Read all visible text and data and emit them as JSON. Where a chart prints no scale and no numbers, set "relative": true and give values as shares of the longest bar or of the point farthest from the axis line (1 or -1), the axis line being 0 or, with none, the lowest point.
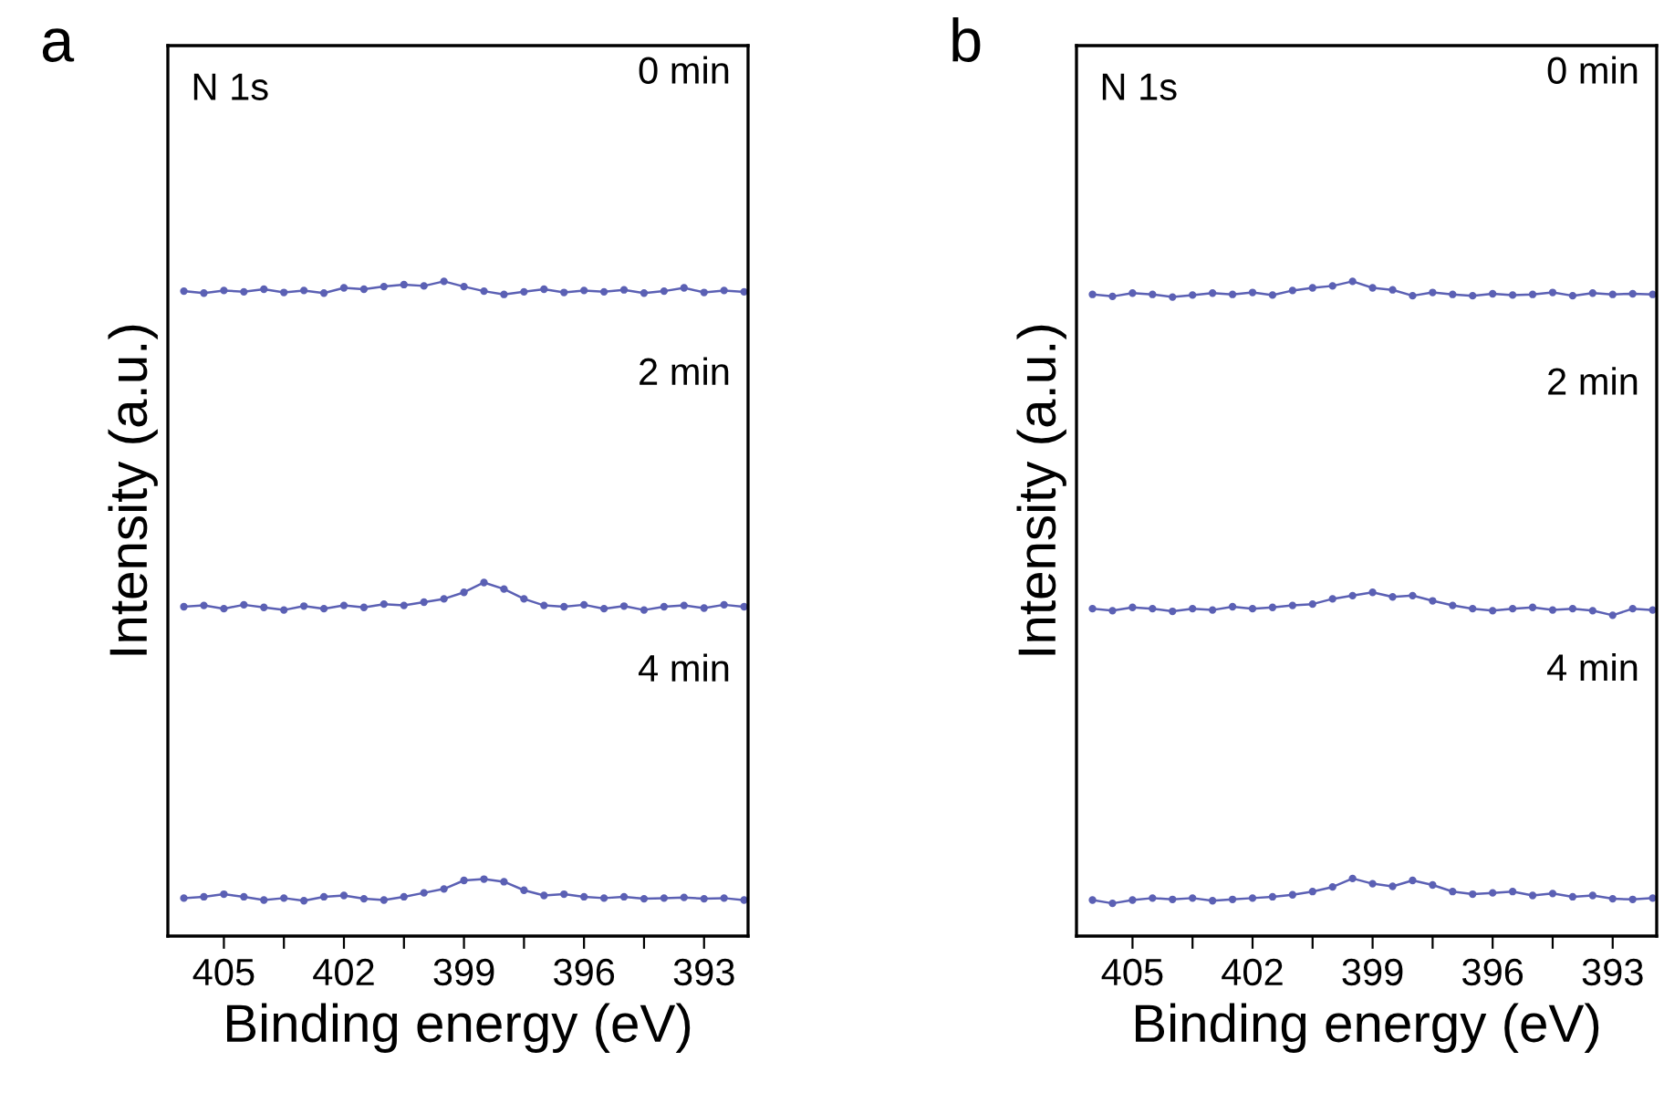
{
  "chart_data": [
    {
      "type": "line",
      "title": "a",
      "xlabel": "Binding energy (eV)",
      "ylabel": "Intensity (a.u.)",
      "relative": true,
      "tick_labels": "x",
      "grid": false,
      "marker": "circle",
      "line_style": "solid",
      "annotations": [
        "N 1s",
        "0 min",
        "2 min",
        "4 min"
      ],
      "xlim": [
        406.4,
        391.9
      ],
      "xticks": [
        405,
        {
          "value": 403.5,
          "label": null
        },
        402,
        {
          "value": 400.5,
          "label": null
        },
        399,
        {
          "value": 397.5,
          "label": null
        },
        396,
        {
          "value": 394.5,
          "label": null
        },
        393
      ],
      "x": [
        406.0,
        405.5,
        405.0,
        404.5,
        404.0,
        403.5,
        403.0,
        402.5,
        402.0,
        401.5,
        401.0,
        400.5,
        400.0,
        399.5,
        399.0,
        398.5,
        398.0,
        397.5,
        397.0,
        396.5,
        396.0,
        395.5,
        395.0,
        394.5,
        394.0,
        393.5,
        393.0,
        392.5,
        392.0
      ],
      "series": [
        {
          "color": "#5b60b4",
          "values": [
            0.985,
            0.982,
            0.986,
            0.984,
            0.988,
            0.983,
            0.986,
            0.982,
            0.99,
            0.988,
            0.992,
            0.995,
            0.993,
            1.0,
            0.992,
            0.985,
            0.98,
            0.984,
            0.988,
            0.983,
            0.986,
            0.984,
            0.987,
            0.982,
            0.985,
            0.99,
            0.983,
            0.986,
            0.984
          ]
        },
        {
          "color": "#5b60b4",
          "values": [
            0.503,
            0.505,
            0.5,
            0.506,
            0.502,
            0.498,
            0.504,
            0.5,
            0.505,
            0.502,
            0.507,
            0.505,
            0.51,
            0.515,
            0.525,
            0.54,
            0.53,
            0.515,
            0.505,
            0.503,
            0.506,
            0.5,
            0.504,
            0.498,
            0.503,
            0.505,
            0.501,
            0.506,
            0.503
          ]
        },
        {
          "color": "#5b60b4",
          "values": [
            0.058,
            0.06,
            0.064,
            0.06,
            0.055,
            0.058,
            0.054,
            0.06,
            0.062,
            0.057,
            0.055,
            0.06,
            0.066,
            0.072,
            0.085,
            0.087,
            0.083,
            0.07,
            0.062,
            0.064,
            0.06,
            0.058,
            0.06,
            0.057,
            0.058,
            0.059,
            0.057,
            0.058,
            0.055
          ]
        }
      ]
    },
    {
      "type": "line",
      "title": "b",
      "xlabel": "Binding energy (eV)",
      "ylabel": "Intensity (a.u.)",
      "relative": true,
      "tick_labels": "x",
      "grid": false,
      "marker": "circle",
      "line_style": "solid",
      "annotations": [
        "N 1s",
        "0 min",
        "2 min",
        "4 min"
      ],
      "xlim": [
        406.4,
        391.9
      ],
      "xticks": [
        405,
        {
          "value": 403.5,
          "label": null
        },
        402,
        {
          "value": 400.5,
          "label": null
        },
        399,
        {
          "value": 397.5,
          "label": null
        },
        396,
        {
          "value": 394.5,
          "label": null
        },
        393
      ],
      "x": [
        406.0,
        405.5,
        405.0,
        404.5,
        404.0,
        403.5,
        403.0,
        402.5,
        402.0,
        401.5,
        401.0,
        400.5,
        400.0,
        399.5,
        399.0,
        398.5,
        398.0,
        397.5,
        397.0,
        396.5,
        396.0,
        395.5,
        395.0,
        394.5,
        394.0,
        393.5,
        393.0,
        392.5,
        392.0
      ],
      "series": [
        {
          "color": "#5b60b4",
          "values": [
            0.98,
            0.977,
            0.982,
            0.98,
            0.976,
            0.979,
            0.982,
            0.98,
            0.983,
            0.979,
            0.986,
            0.99,
            0.993,
            1.0,
            0.99,
            0.987,
            0.978,
            0.983,
            0.98,
            0.978,
            0.981,
            0.979,
            0.98,
            0.983,
            0.978,
            0.982,
            0.98,
            0.981,
            0.98
          ]
        },
        {
          "color": "#5b60b4",
          "values": [
            0.5,
            0.497,
            0.502,
            0.5,
            0.496,
            0.5,
            0.498,
            0.503,
            0.5,
            0.502,
            0.505,
            0.507,
            0.515,
            0.52,
            0.525,
            0.518,
            0.52,
            0.512,
            0.505,
            0.5,
            0.497,
            0.5,
            0.502,
            0.498,
            0.5,
            0.497,
            0.49,
            0.5,
            0.498
          ]
        },
        {
          "color": "#5b60b4",
          "values": [
            0.055,
            0.05,
            0.055,
            0.058,
            0.056,
            0.058,
            0.054,
            0.056,
            0.058,
            0.06,
            0.063,
            0.068,
            0.075,
            0.088,
            0.08,
            0.076,
            0.085,
            0.078,
            0.068,
            0.064,
            0.066,
            0.068,
            0.062,
            0.065,
            0.06,
            0.062,
            0.057,
            0.056,
            0.058
          ]
        }
      ]
    }
  ]
}
